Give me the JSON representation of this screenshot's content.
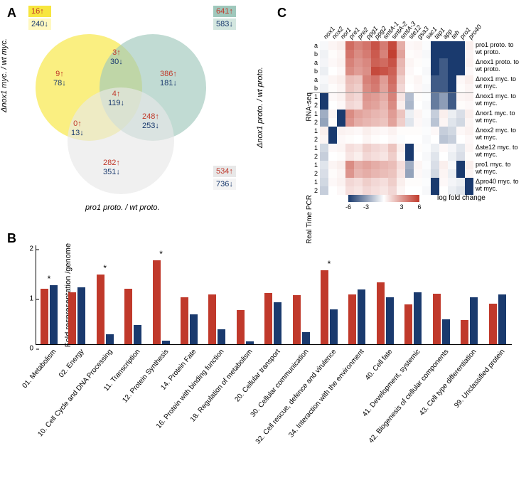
{
  "labels": {
    "A": "A",
    "B": "B",
    "C": "C"
  },
  "colors": {
    "up": "#c0392b",
    "down": "#1a3a6e",
    "yellow": "#f7e63e",
    "teal": "#9fc8bc",
    "grey": "#e8e8e8",
    "heat_min": "#1a3a6e",
    "heat_mid": "#ffffff",
    "heat_max": "#c0392b"
  },
  "panelA": {
    "sets": {
      "yellow": {
        "label": "Δnox1 myc. / wt myc.",
        "total_up": 16,
        "total_down": 240
      },
      "teal": {
        "label": "Δnox1 proto. / wt proto.",
        "total_up": 641,
        "total_down": 583
      },
      "grey": {
        "label": "pro1 proto. / wt proto.",
        "total_up": 534,
        "total_down": 736
      }
    },
    "regions": {
      "yellow_only": {
        "up": 9,
        "down": 78
      },
      "teal_only": {
        "up": 386,
        "down": 181
      },
      "grey_only": {
        "up": 282,
        "down": 351
      },
      "yellow_teal": {
        "up": 3,
        "down": 30
      },
      "teal_grey": {
        "up": 248,
        "down": 253
      },
      "yellow_grey": {
        "up": 0,
        "down": 13
      },
      "all": {
        "up": 4,
        "down": 119
      }
    }
  },
  "panelB": {
    "ylabel": "Fold respresentation\n/genome",
    "ylim": [
      0,
      2
    ],
    "ytick_step": 1,
    "categories": [
      "01. Metabolism",
      "02. Energy",
      "10. Cell Cycle and DNA Processing",
      "11. Transcription",
      "12. Protein Synthesis",
      "14. Protein Fate",
      "16. Protein with binding function",
      "18. Regulation of metabolism",
      "20. Cellular transport",
      "30. Cellular communication",
      "32. Cell rescue, defence and virulence",
      "34. Interaction with the environment",
      "40. Cell fate",
      "41. Development, systemic",
      "42. Biogenesis of cellular components",
      "43. Cell type differentiation",
      "99. Unclassified protein"
    ],
    "series": [
      {
        "name": "up",
        "color": "#c0392b",
        "values": [
          1.12,
          1.05,
          1.4,
          1.12,
          1.68,
          0.95,
          1.0,
          0.68,
          1.03,
          0.98,
          1.48,
          1.0,
          1.25,
          0.8,
          1.02,
          0.48,
          0.82
        ]
      },
      {
        "name": "down",
        "color": "#1a3a6e",
        "values": [
          1.18,
          1.15,
          0.2,
          0.38,
          0.07,
          0.6,
          0.3,
          0.06,
          0.85,
          0.25,
          0.7,
          1.1,
          0.95,
          1.05,
          0.5,
          0.95,
          1.0
        ]
      }
    ],
    "stars": [
      0,
      2,
      4,
      10
    ]
  },
  "panelC": {
    "col_labels": [
      "nox1",
      "nox2",
      "nor1",
      "pre1",
      "pre2",
      "ppg1",
      "ppg2",
      "smtA-1",
      "smtA-2",
      "smtA-3",
      "ste12",
      "gsa3",
      "sac1",
      "tap1",
      "app",
      "teh",
      "pro1",
      "pro40"
    ],
    "row_groups": [
      {
        "name": "RNA-seq",
        "rows": [
          "a",
          "b",
          "a",
          "b",
          "a",
          "b"
        ],
        "pairs": [
          "pro1 proto. to\nwt proto.",
          "Δnox1 proto. to\nwt proto.",
          "Δnox1 myc. to\nwt myc."
        ]
      },
      {
        "name": "Real Time PCR",
        "rows": [
          "1",
          "2",
          "1",
          "2",
          "1",
          "2",
          "1",
          "2",
          "1",
          "2",
          "1",
          "2"
        ],
        "pairs": [
          "Δnox1 myc. to\nwt myc.",
          "Δnor1 myc. to\nwt myc.",
          "Δnox2 myc. to\nwt myc.",
          "Δste12 myc. to\nwt myc.",
          "pro1 myc. to\nwt myc.",
          "Δpro40 myc. to\nwt myc."
        ]
      }
    ],
    "legend": {
      "min": -6,
      "max": 6,
      "ticks": [
        -6,
        -3,
        3,
        6
      ],
      "label": "log fold change"
    },
    "values": [
      [
        -0.2,
        0.3,
        0.5,
        4.5,
        3.8,
        4.2,
        5.2,
        4.0,
        5.5,
        2.5,
        0.2,
        0.3,
        -0.1,
        -6,
        -6,
        -6,
        -6,
        0.5
      ],
      [
        -0.4,
        0.1,
        0.3,
        4.2,
        3.5,
        4.0,
        5.0,
        3.8,
        5.8,
        2.8,
        0.1,
        0.2,
        -0.2,
        -6,
        -6,
        -6,
        -6,
        0.3
      ],
      [
        -0.3,
        0.2,
        0.4,
        3.8,
        3.2,
        3.6,
        4.8,
        4.5,
        5.2,
        2.2,
        0.3,
        0.1,
        -0.1,
        -6,
        -5,
        -6,
        -6,
        0.4
      ],
      [
        -0.5,
        0.0,
        0.2,
        3.5,
        3.0,
        3.4,
        5.5,
        5.2,
        4.8,
        2.0,
        0.2,
        0.0,
        -0.2,
        -6,
        -5,
        -6,
        -6,
        0.2
      ],
      [
        -0.2,
        0.3,
        0.5,
        2.0,
        1.8,
        3.8,
        4.2,
        3.0,
        4.5,
        1.5,
        0.1,
        0.3,
        -0.1,
        -5,
        -5,
        -6,
        0.2,
        0.5
      ],
      [
        -0.4,
        0.1,
        0.3,
        1.8,
        1.5,
        3.5,
        4.0,
        2.8,
        4.2,
        1.2,
        0.0,
        0.2,
        -0.2,
        -5,
        -5,
        -6,
        0.1,
        0.3
      ],
      [
        -6,
        0.2,
        0.4,
        1.5,
        1.2,
        3.2,
        3.0,
        2.5,
        3.8,
        0.8,
        -2.0,
        0.1,
        -0.1,
        -4,
        -3,
        -5,
        0.3,
        0.4
      ],
      [
        -6,
        0.0,
        0.2,
        1.2,
        1.0,
        3.0,
        2.8,
        2.2,
        3.5,
        0.5,
        -2.2,
        0.0,
        -0.2,
        -4,
        -3,
        -5,
        0.1,
        0.2
      ],
      [
        -2.5,
        0.3,
        -6,
        3.5,
        2.8,
        2.5,
        2.2,
        2.0,
        3.0,
        1.8,
        -0.5,
        0.3,
        -0.1,
        -1.5,
        0.5,
        -0.5,
        -1,
        0.5
      ],
      [
        -2.8,
        0.1,
        -6,
        3.2,
        2.5,
        2.2,
        2.0,
        1.8,
        2.8,
        1.5,
        -0.8,
        0.2,
        -0.2,
        -1.8,
        0.3,
        -0.8,
        -1.2,
        0.3
      ],
      [
        0.5,
        -6,
        0.4,
        0.3,
        0.2,
        0.5,
        0.3,
        0.2,
        0.4,
        0.1,
        0.1,
        0.1,
        -0.1,
        0.2,
        -1.5,
        -1.2,
        0.2,
        0.4
      ],
      [
        0.3,
        -6,
        0.2,
        0.1,
        0.0,
        0.3,
        0.1,
        0.0,
        0.2,
        -0.1,
        0.0,
        0.0,
        -0.2,
        0.0,
        -1.8,
        -1.5,
        0.0,
        0.2
      ],
      [
        -1.2,
        0.2,
        0.3,
        1.0,
        0.8,
        1.5,
        1.2,
        1.0,
        1.8,
        0.5,
        -6,
        0.1,
        -0.1,
        -0.5,
        0.2,
        -0.3,
        -0.8,
        0.3
      ],
      [
        -1.5,
        0.0,
        0.1,
        0.8,
        0.5,
        1.2,
        1.0,
        0.8,
        1.5,
        0.3,
        -6,
        0.0,
        -0.2,
        -0.8,
        0.0,
        -0.5,
        -1.0,
        0.1
      ],
      [
        -0.8,
        0.3,
        0.5,
        3.5,
        2.5,
        2.8,
        2.5,
        2.2,
        2.0,
        1.0,
        -2.5,
        0.3,
        -0.1,
        -1.0,
        0.5,
        -0.2,
        -6,
        0.5
      ],
      [
        -1.0,
        0.1,
        0.3,
        3.2,
        2.2,
        2.5,
        2.2,
        2.0,
        1.8,
        0.8,
        -2.8,
        0.2,
        -0.2,
        -1.2,
        0.3,
        -0.5,
        -6,
        0.3
      ],
      [
        -1.2,
        0.2,
        0.4,
        1.2,
        1.0,
        1.5,
        1.2,
        1.0,
        1.5,
        0.5,
        0.1,
        0.1,
        -0.1,
        -6,
        0.2,
        -0.3,
        -0.5,
        -6
      ],
      [
        -1.5,
        0.0,
        0.2,
        1.0,
        0.8,
        1.2,
        1.0,
        0.8,
        1.2,
        0.3,
        0.0,
        0.0,
        -0.2,
        -6,
        0.0,
        -0.5,
        -0.8,
        -6
      ]
    ]
  }
}
